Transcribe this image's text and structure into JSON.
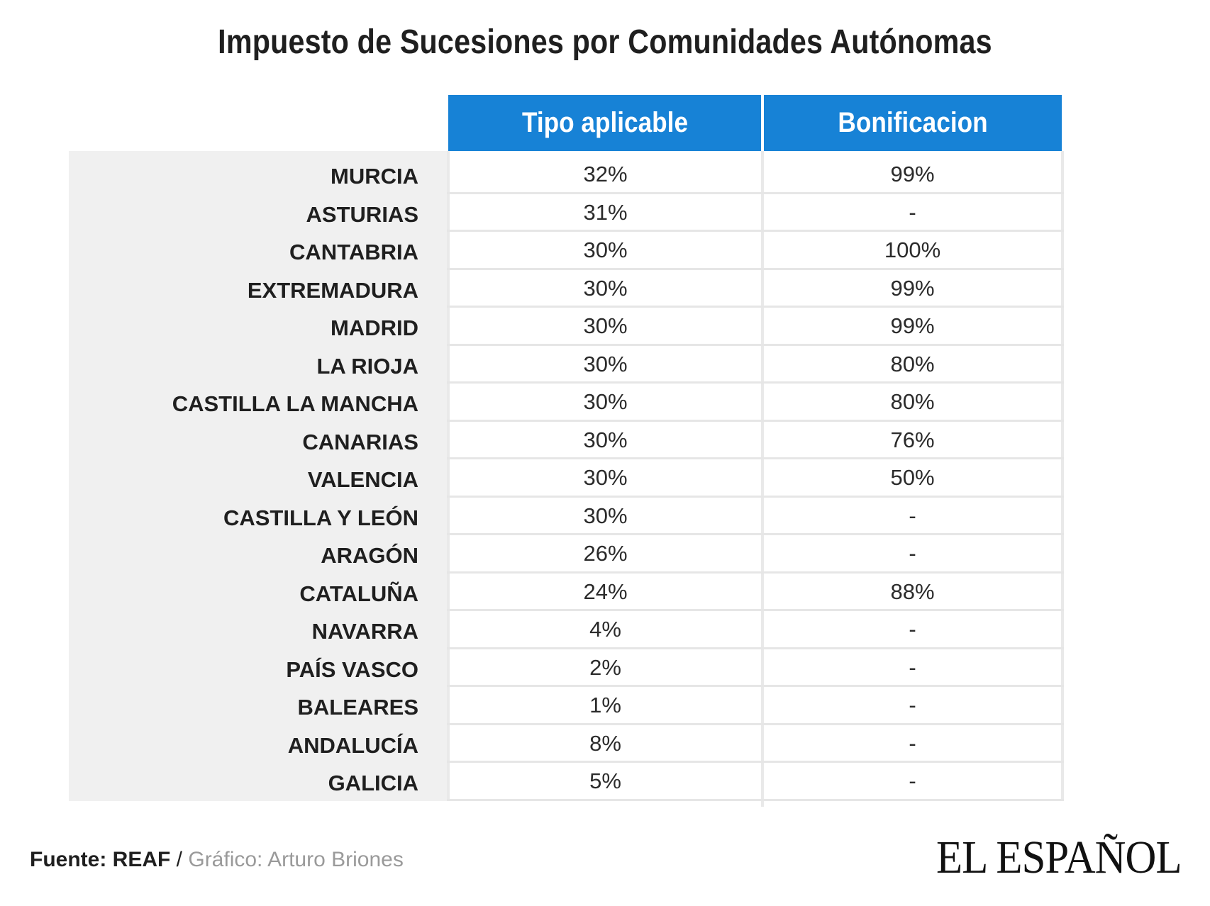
{
  "chart_data": {
    "type": "table",
    "title": "Impuesto de Sucesiones por Comunidades Autónomas",
    "columns": [
      "Tipo aplicable",
      "Bonificacion"
    ],
    "rows": [
      {
        "region": "MURCIA",
        "tipo": "32%",
        "bonificacion": "99%"
      },
      {
        "region": "ASTURIAS",
        "tipo": "31%",
        "bonificacion": "-"
      },
      {
        "region": "CANTABRIA",
        "tipo": "30%",
        "bonificacion": "100%"
      },
      {
        "region": "EXTREMADURA",
        "tipo": "30%",
        "bonificacion": "99%"
      },
      {
        "region": "MADRID",
        "tipo": "30%",
        "bonificacion": "99%"
      },
      {
        "region": "LA RIOJA",
        "tipo": "30%",
        "bonificacion": "80%"
      },
      {
        "region": "CASTILLA LA MANCHA",
        "tipo": "30%",
        "bonificacion": "80%"
      },
      {
        "region": "CANARIAS",
        "tipo": "30%",
        "bonificacion": "76%"
      },
      {
        "region": "VALENCIA",
        "tipo": "30%",
        "bonificacion": "50%"
      },
      {
        "region": "CASTILLA Y LEÓN",
        "tipo": "30%",
        "bonificacion": "-"
      },
      {
        "region": "ARAGÓN",
        "tipo": "26%",
        "bonificacion": "-"
      },
      {
        "region": "CATALUÑA",
        "tipo": "24%",
        "bonificacion": "88%"
      },
      {
        "region": "NAVARRA",
        "tipo": "4%",
        "bonificacion": "-"
      },
      {
        "region": "PAÍS VASCO",
        "tipo": "2%",
        "bonificacion": "-"
      },
      {
        "region": "BALEARES",
        "tipo": "1%",
        "bonificacion": "-"
      },
      {
        "region": "ANDALUCÍA",
        "tipo": "8%",
        "bonificacion": "-"
      },
      {
        "region": "GALICIA",
        "tipo": "5%",
        "bonificacion": "-"
      }
    ]
  },
  "footer": {
    "source_label": "Fuente: REAF",
    "separator": "/",
    "credit": "Gráfico: Arturo Briones"
  },
  "logo": {
    "text": "EL ESPAÑOL"
  },
  "colors": {
    "header_bg": "#1782d6",
    "label_panel_bg": "#f0f0f0",
    "grid_line": "#e6e6e6"
  }
}
